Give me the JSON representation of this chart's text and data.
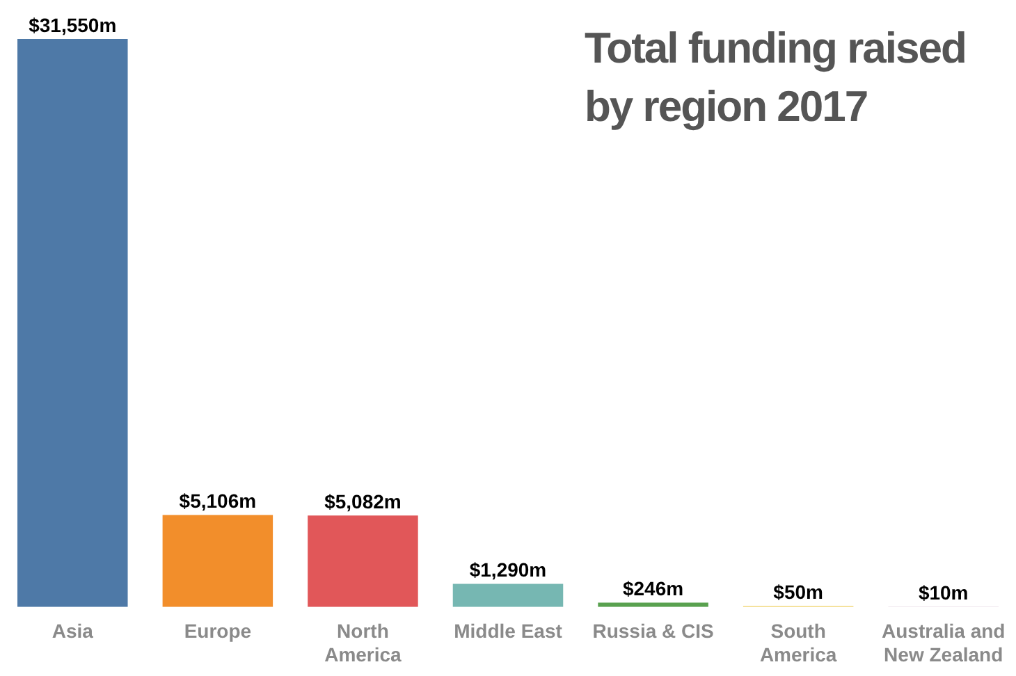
{
  "chart_data": {
    "type": "bar",
    "title": "Total funding raised by region 2017",
    "categories": [
      "Asia",
      "Europe",
      "North America",
      "Middle East",
      "Russia & CIS",
      "South America",
      "Australia and New Zealand"
    ],
    "values": [
      31550,
      5106,
      5082,
      1290,
      246,
      50,
      10
    ],
    "colors": [
      "#4e79a7",
      "#f28e2b",
      "#e15759",
      "#76b7b2",
      "#59a14f",
      "#edc948",
      "#b07aa1"
    ],
    "value_labels": [
      "$31,550m",
      "$5,106m",
      "$5,082m",
      "$1,290m",
      "$246m",
      "$50m",
      "$10m"
    ]
  }
}
